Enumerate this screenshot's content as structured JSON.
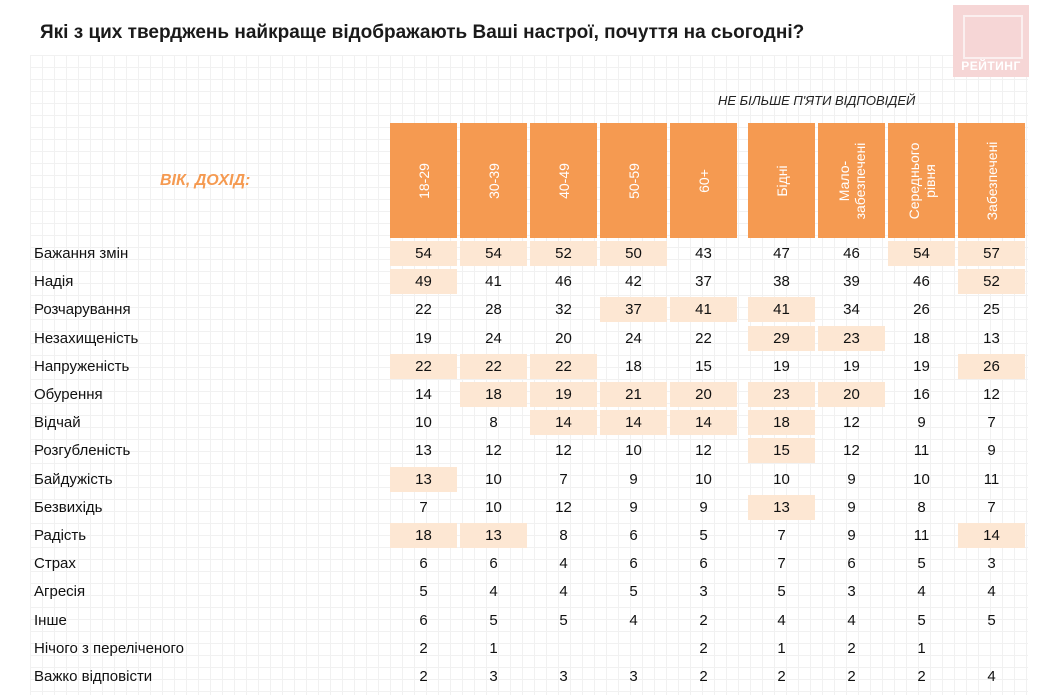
{
  "title": "Які з цих тверджень найкраще відображають Ваші настрої, почуття на сьогодні?",
  "logo_text": "РЕЙТИНГ",
  "note": "НЕ БІЛЬШЕ П'ЯТИ ВІДПОВІДЕЙ",
  "axis_label": "ВІК, ДОХІД:",
  "colors": {
    "header": "#f59a51",
    "highlight": "#fde7d3",
    "logo": "#f6d6d6"
  },
  "chart_data": {
    "type": "table",
    "title": "Які з цих тверджень найкраще відображають Ваші настрої, почуття на сьогодні?",
    "group_label": "ВІК, ДОХІД:",
    "columns": [
      "18-29",
      "30-39",
      "40-49",
      "50-59",
      "60+",
      "Бідні",
      "Мало-\nзабезпечені",
      "Середнього\nрівня",
      "Забезпечені"
    ],
    "rows": [
      {
        "label": "Бажання змін",
        "values": [
          54,
          54,
          52,
          50,
          43,
          47,
          46,
          54,
          57
        ],
        "highlight": [
          true,
          true,
          true,
          true,
          false,
          false,
          false,
          true,
          true
        ]
      },
      {
        "label": "Надія",
        "values": [
          49,
          41,
          46,
          42,
          37,
          38,
          39,
          46,
          52
        ],
        "highlight": [
          true,
          false,
          false,
          false,
          false,
          false,
          false,
          false,
          true
        ]
      },
      {
        "label": "Розчарування",
        "values": [
          22,
          28,
          32,
          37,
          41,
          41,
          34,
          26,
          25
        ],
        "highlight": [
          false,
          false,
          false,
          true,
          true,
          true,
          false,
          false,
          false
        ]
      },
      {
        "label": "Незахищеність",
        "values": [
          19,
          24,
          20,
          24,
          22,
          29,
          23,
          18,
          13
        ],
        "highlight": [
          false,
          false,
          false,
          false,
          false,
          true,
          true,
          false,
          false
        ]
      },
      {
        "label": "Напруженість",
        "values": [
          22,
          22,
          22,
          18,
          15,
          19,
          19,
          19,
          26
        ],
        "highlight": [
          true,
          true,
          true,
          false,
          false,
          false,
          false,
          false,
          true
        ]
      },
      {
        "label": "Обурення",
        "values": [
          14,
          18,
          19,
          21,
          20,
          23,
          20,
          16,
          12
        ],
        "highlight": [
          false,
          true,
          true,
          true,
          true,
          true,
          true,
          false,
          false
        ]
      },
      {
        "label": "Відчай",
        "values": [
          10,
          8,
          14,
          14,
          14,
          18,
          12,
          9,
          7
        ],
        "highlight": [
          false,
          false,
          true,
          true,
          true,
          true,
          false,
          false,
          false
        ]
      },
      {
        "label": "Розгубленість",
        "values": [
          13,
          12,
          12,
          10,
          12,
          15,
          12,
          11,
          9
        ],
        "highlight": [
          false,
          false,
          false,
          false,
          false,
          true,
          false,
          false,
          false
        ]
      },
      {
        "label": "Байдужість",
        "values": [
          13,
          10,
          7,
          9,
          10,
          10,
          9,
          10,
          11
        ],
        "highlight": [
          true,
          false,
          false,
          false,
          false,
          false,
          false,
          false,
          false
        ]
      },
      {
        "label": "Безвихідь",
        "values": [
          7,
          10,
          12,
          9,
          9,
          13,
          9,
          8,
          7
        ],
        "highlight": [
          false,
          false,
          false,
          false,
          false,
          true,
          false,
          false,
          false
        ]
      },
      {
        "label": "Радість",
        "values": [
          18,
          13,
          8,
          6,
          5,
          7,
          9,
          11,
          14
        ],
        "highlight": [
          true,
          true,
          false,
          false,
          false,
          false,
          false,
          false,
          true
        ]
      },
      {
        "label": "Страх",
        "values": [
          6,
          6,
          4,
          6,
          6,
          7,
          6,
          5,
          3
        ],
        "highlight": [
          false,
          false,
          false,
          false,
          false,
          false,
          false,
          false,
          false
        ]
      },
      {
        "label": "Агресія",
        "values": [
          5,
          4,
          4,
          5,
          3,
          5,
          3,
          4,
          4
        ],
        "highlight": [
          false,
          false,
          false,
          false,
          false,
          false,
          false,
          false,
          false
        ]
      },
      {
        "label": "Інше",
        "values": [
          6,
          5,
          5,
          4,
          2,
          4,
          4,
          5,
          5
        ],
        "highlight": [
          false,
          false,
          false,
          false,
          false,
          false,
          false,
          false,
          false
        ]
      },
      {
        "label": "Нічого з переліченого",
        "values": [
          2,
          1,
          null,
          null,
          2,
          1,
          2,
          1,
          null
        ],
        "highlight": [
          false,
          false,
          false,
          false,
          false,
          false,
          false,
          false,
          false
        ]
      },
      {
        "label": "Важко відповісти",
        "values": [
          2,
          3,
          3,
          3,
          2,
          2,
          2,
          2,
          4
        ],
        "highlight": [
          false,
          false,
          false,
          false,
          false,
          false,
          false,
          false,
          false
        ]
      }
    ]
  }
}
